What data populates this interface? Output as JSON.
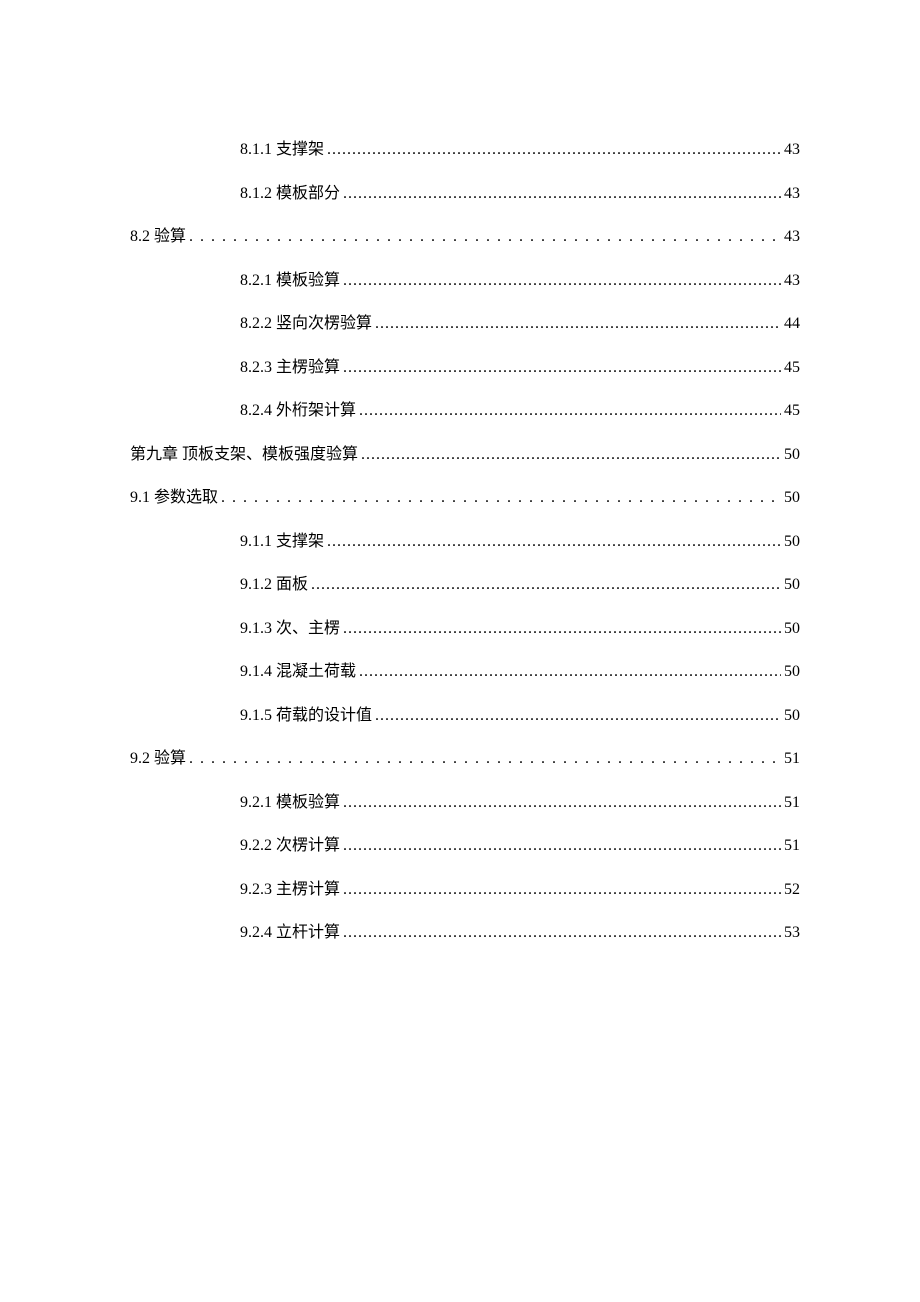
{
  "toc": {
    "entries": [
      {
        "label": "8.1.1  支撑架",
        "page": "43",
        "indent": 2,
        "leader": "dots"
      },
      {
        "label": "8.1.2  模板部分",
        "page": "43",
        "indent": 2,
        "leader": "dots"
      },
      {
        "label": "8.2 验算",
        "page": "43",
        "indent": 1,
        "leader": "wide"
      },
      {
        "label": "8.2.1  模板验算",
        "page": "43",
        "indent": 2,
        "leader": "dots"
      },
      {
        "label": "8.2.2  竖向次楞验算",
        "page": "44",
        "indent": 2,
        "leader": "dots"
      },
      {
        "label": "8.2.3  主楞验算",
        "page": "45",
        "indent": 2,
        "leader": "dots"
      },
      {
        "label": "8.2.4  外桁架计算",
        "page": "45",
        "indent": 2,
        "leader": "dots"
      },
      {
        "label": "第九章  顶板支架、模板强度验算",
        "page": "50",
        "indent": 1,
        "leader": "dots"
      },
      {
        "label": "9.1 参数选取",
        "page": "50",
        "indent": 1,
        "leader": "wide"
      },
      {
        "label": "9.1.1  支撑架",
        "page": "50",
        "indent": 2,
        "leader": "dots"
      },
      {
        "label": "9.1.2  面板",
        "page": "50",
        "indent": 2,
        "leader": "dots"
      },
      {
        "label": "9.1.3  次、主楞",
        "page": "50",
        "indent": 2,
        "leader": "dots"
      },
      {
        "label": "9.1.4  混凝土荷载",
        "page": "50",
        "indent": 2,
        "leader": "dots"
      },
      {
        "label": "9.1.5  荷载的设计值",
        "page": "50",
        "indent": 2,
        "leader": "dots"
      },
      {
        "label": "9.2 验算",
        "page": "51",
        "indent": 1,
        "leader": "wide"
      },
      {
        "label": "9.2.1 模板验算",
        "page": "51",
        "indent": 2,
        "leader": "dots"
      },
      {
        "label": "9.2.2 次楞计算",
        "page": "51",
        "indent": 2,
        "leader": "dots"
      },
      {
        "label": "9.2.3 主楞计算",
        "page": "52",
        "indent": 2,
        "leader": "dots"
      },
      {
        "label": "9.2.4 立杆计算",
        "page": "53",
        "indent": 2,
        "leader": "dots"
      }
    ]
  }
}
